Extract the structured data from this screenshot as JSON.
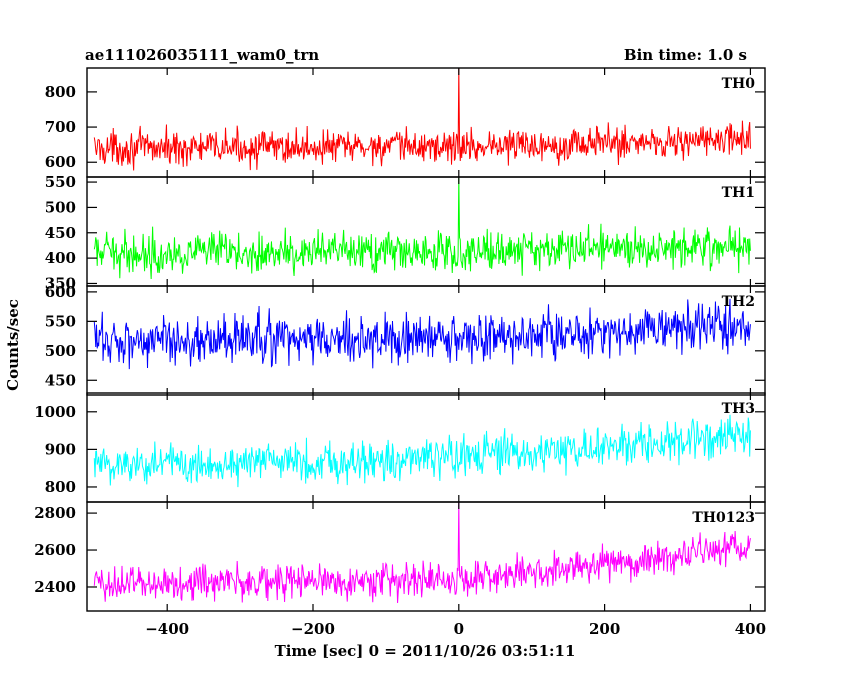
{
  "header": {
    "title": "ae111026035111_wam0_trn",
    "bin_time": "Bin time: 1.0 s"
  },
  "chart_data": {
    "type": "line",
    "xlabel": "Time [sec] 0 = 2011/10/26 03:51:11",
    "ylabel": "Counts/sec",
    "xlim": [
      -510,
      420
    ],
    "x_ticks": [
      -400,
      -200,
      0,
      200,
      400
    ],
    "x_tick_labels": [
      "−400",
      "−200",
      "0",
      "200",
      "400"
    ],
    "x_step": 1,
    "x_range": [
      -500,
      400
    ],
    "panels": [
      {
        "name": "TH0",
        "color": "#ff0000",
        "ylim": [
          558,
          868
        ],
        "y_ticks": [
          600,
          700,
          800
        ],
        "y_tick_labels": [
          "600",
          "700",
          "800"
        ],
        "trend": [
          [
            -500,
            640
          ],
          [
            0,
            645
          ],
          [
            100,
            650
          ],
          [
            400,
            665
          ]
        ],
        "noise_amplitude": 30,
        "spike": {
          "x": 0,
          "y": 870
        }
      },
      {
        "name": "TH1",
        "color": "#00ff00",
        "ylim": [
          345,
          560
        ],
        "y_ticks": [
          350,
          400,
          450,
          500,
          550
        ],
        "y_tick_labels": [
          "350",
          "400",
          "450",
          "500",
          "550"
        ],
        "trend": [
          [
            -500,
            410
          ],
          [
            0,
            412
          ],
          [
            100,
            418
          ],
          [
            400,
            425
          ]
        ],
        "noise_amplitude": 24,
        "spike": {
          "x": 0,
          "y": 560
        }
      },
      {
        "name": "TH2",
        "color": "#0000ff",
        "ylim": [
          425,
          610
        ],
        "y_ticks": [
          450,
          500,
          550,
          600
        ],
        "y_tick_labels": [
          "450",
          "500",
          "550",
          "600"
        ],
        "trend": [
          [
            -500,
            518
          ],
          [
            0,
            520
          ],
          [
            100,
            525
          ],
          [
            400,
            545
          ]
        ],
        "noise_amplitude": 26,
        "spike": null
      },
      {
        "name": "TH3",
        "color": "#00ffff",
        "ylim": [
          760,
          1050
        ],
        "y_ticks": [
          800,
          900,
          1000
        ],
        "y_tick_labels": [
          "800",
          "900",
          "1000"
        ],
        "trend": [
          [
            -500,
            860
          ],
          [
            -100,
            870
          ],
          [
            100,
            890
          ],
          [
            400,
            935
          ]
        ],
        "noise_amplitude": 34,
        "spike": null
      },
      {
        "name": "TH0123",
        "color": "#ff00ff",
        "ylim": [
          2270,
          2860
        ],
        "y_ticks": [
          2400,
          2600,
          2800
        ],
        "y_tick_labels": [
          "2400",
          "2600",
          "2800"
        ],
        "trend": [
          [
            -500,
            2420
          ],
          [
            0,
            2440
          ],
          [
            100,
            2480
          ],
          [
            250,
            2550
          ],
          [
            400,
            2610
          ]
        ],
        "noise_amplitude": 60,
        "spike": {
          "x": 0,
          "y": 2860
        }
      }
    ]
  }
}
